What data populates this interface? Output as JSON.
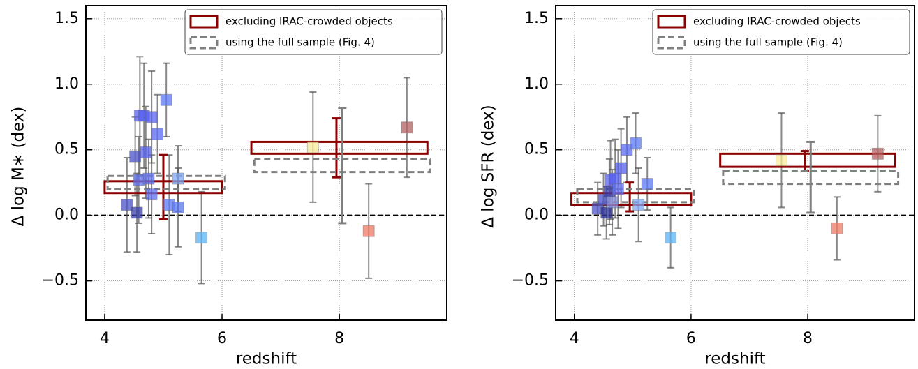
{
  "chart_data": [
    {
      "type": "scatter",
      "xlabel": "redshift",
      "ylabel": "Δ log M∗ (dex)",
      "xlim": [
        3.68,
        9.83
      ],
      "ylim": [
        -0.8,
        1.6
      ],
      "xticks": [
        4,
        6,
        8
      ],
      "yticks": [
        {
          "value": -0.5,
          "label": "−0.5"
        },
        {
          "value": 0,
          "label": "0.0"
        },
        0.5,
        {
          "value": 1,
          "label": "1.0"
        },
        1.5
      ],
      "grid": true,
      "hline": 0,
      "legend": "upper right",
      "points": {
        "x": [
          4.38,
          4.52,
          4.55,
          4.58,
          4.6,
          4.67,
          4.7,
          4.8,
          4.75,
          4.8,
          4.9,
          5.05,
          5.1,
          5.25,
          5.25,
          5.65,
          7.55,
          8.5,
          9.15
        ],
        "y": [
          0.08,
          0.45,
          0.02,
          0.27,
          0.76,
          0.76,
          0.48,
          0.75,
          0.28,
          0.16,
          0.62,
          0.88,
          0.08,
          0.06,
          0.28,
          -0.17,
          0.52,
          -0.12,
          0.67
        ],
        "yerr": [
          0.36,
          0.3,
          0.3,
          0.33,
          0.45,
          0.4,
          0.35,
          0.35,
          0.3,
          0.3,
          0.3,
          0.28,
          0.38,
          0.3,
          0.25,
          0.35,
          0.42,
          0.36,
          0.38
        ],
        "colors": [
          "#4a52c8",
          "#4a52c8",
          "#3a3fb0",
          "#6070f0",
          "#5560f0",
          "#5560f0",
          "#5560f0",
          "#5560f0",
          "#6070f0",
          "#6070f0",
          "#5a6af5",
          "#5a78f5",
          "#5a78f5",
          "#5a78f5",
          "#7fa8f5",
          "#5ab4f5",
          "#f7ec9a",
          "#f07a64",
          "#b36060"
        ]
      },
      "series": [
        {
          "name": "excluding IRAC-crowded objects",
          "color": "#8b0000",
          "dashed": false,
          "boxes": {
            "x0": [
              4.0,
              6.5
            ],
            "x1": [
              6.0,
              9.5
            ],
            "y0": [
              0.17,
              0.47
            ],
            "y1": [
              0.26,
              0.56
            ]
          },
          "errorbars": {
            "x": [
              5.0,
              7.95
            ],
            "y": [
              0.215,
              0.515
            ],
            "yerr": [
              0.245,
              0.225
            ]
          }
        },
        {
          "name": "using the full sample (Fig. 4)",
          "color": "#808080",
          "dashed": true,
          "boxes": {
            "x0": [
              4.05,
              6.55
            ],
            "x1": [
              6.05,
              9.55
            ],
            "y0": [
              0.2,
              0.33
            ],
            "y1": [
              0.3,
              0.43
            ]
          },
          "errorbars": {
            "x": [
              8.05
            ],
            "y": [
              0.38
            ],
            "yerr": [
              0.44
            ]
          }
        }
      ]
    },
    {
      "type": "scatter",
      "xlabel": "redshift",
      "ylabel": "Δ log SFR (dex)",
      "xlim": [
        3.68,
        9.83
      ],
      "ylim": [
        -0.8,
        1.6
      ],
      "xticks": [
        4,
        6,
        8
      ],
      "yticks": [
        {
          "value": -0.5,
          "label": "−0.5"
        },
        {
          "value": 0,
          "label": "0.0"
        },
        0.5,
        {
          "value": 1,
          "label": "1.0"
        },
        1.5
      ],
      "grid": true,
      "hline": 0,
      "legend": "upper right",
      "points": {
        "x": [
          4.4,
          4.5,
          4.55,
          4.6,
          4.62,
          4.7,
          4.75,
          4.8,
          4.9,
          5.05,
          5.1,
          5.25,
          4.65,
          5.65,
          7.55,
          8.5,
          9.2
        ],
        "y": [
          0.05,
          0.12,
          0.02,
          0.18,
          0.27,
          0.28,
          0.2,
          0.36,
          0.5,
          0.55,
          0.08,
          0.24,
          0.1,
          -0.17,
          0.42,
          -0.1,
          0.47
        ],
        "yerr": [
          0.2,
          0.2,
          0.2,
          0.25,
          0.3,
          0.3,
          0.3,
          0.3,
          0.25,
          0.23,
          0.28,
          0.2,
          0.25,
          0.23,
          0.36,
          0.24,
          0.29
        ],
        "colors": [
          "#4a52c8",
          "#4a52c8",
          "#2a2f9a",
          "#3a3fb0",
          "#5560f0",
          "#5560f0",
          "#6070f0",
          "#5560f0",
          "#5a6af5",
          "#5a78f5",
          "#7fa8f5",
          "#5a78f5",
          "#8890e0",
          "#5ab4f5",
          "#f7ec9a",
          "#f07a64",
          "#b36060"
        ]
      },
      "series": [
        {
          "name": "excluding IRAC-crowded objects",
          "color": "#8b0000",
          "dashed": false,
          "boxes": {
            "x0": [
              3.95,
              6.5
            ],
            "x1": [
              6.0,
              9.5
            ],
            "y0": [
              0.08,
              0.37
            ],
            "y1": [
              0.17,
              0.47
            ]
          },
          "errorbars": {
            "x": [
              4.95,
              7.95
            ],
            "y": [
              0.14,
              0.415
            ],
            "yerr": [
              0.11,
              0.075
            ]
          }
        },
        {
          "name": "using the full sample (Fig. 4)",
          "color": "#808080",
          "dashed": true,
          "boxes": {
            "x0": [
              4.05,
              6.55
            ],
            "x1": [
              6.05,
              9.55
            ],
            "y0": [
              0.1,
              0.24
            ],
            "y1": [
              0.2,
              0.34
            ]
          },
          "errorbars": {
            "x": [
              8.05
            ],
            "y": [
              0.29
            ],
            "yerr": [
              0.27
            ]
          }
        }
      ]
    }
  ]
}
